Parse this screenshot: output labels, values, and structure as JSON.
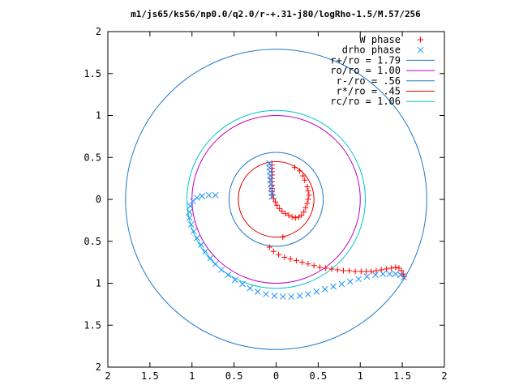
{
  "chart_data": {
    "type": "scatter",
    "title": "m1/js65/ks56/np0.0/q2.0/r-+.31-j80/logRho-1.5/M.57/256",
    "xlabel": "",
    "ylabel": "",
    "xlim": [
      -2,
      2
    ],
    "ylim": [
      -2,
      2
    ],
    "grid": false,
    "legend_position": "top-right",
    "x_ticks": [
      "2",
      "1.5",
      "1",
      "0.5",
      "0",
      "0.5",
      "1",
      "1.5",
      "2"
    ],
    "y_ticks": [
      "2",
      "1.5",
      "1",
      "0.5",
      "0",
      "0.5",
      "1",
      "1.5",
      "2"
    ],
    "series": [
      {
        "name": "W phase",
        "kind": "points",
        "marker": "+",
        "color": "#ff0000",
        "points": [
          [
            -0.05,
            0.41
          ],
          [
            -0.05,
            0.37
          ],
          [
            -0.05,
            0.33
          ],
          [
            -0.05,
            0.29
          ],
          [
            -0.05,
            0.25
          ],
          [
            -0.05,
            0.21
          ],
          [
            -0.05,
            0.17
          ],
          [
            -0.05,
            0.13
          ],
          [
            -0.05,
            0.09
          ],
          [
            -0.04,
            0.05
          ],
          [
            -0.03,
            0.01
          ],
          [
            -0.01,
            -0.03
          ],
          [
            0.01,
            -0.07
          ],
          [
            0.04,
            -0.11
          ],
          [
            0.07,
            -0.14
          ],
          [
            0.11,
            -0.17
          ],
          [
            0.15,
            -0.19
          ],
          [
            0.19,
            -0.21
          ],
          [
            0.23,
            -0.22
          ],
          [
            0.27,
            -0.21
          ],
          [
            0.3,
            -0.19
          ],
          [
            0.33,
            -0.15
          ],
          [
            0.35,
            -0.1
          ],
          [
            0.37,
            -0.05
          ],
          [
            0.38,
            0.0
          ],
          [
            0.39,
            0.05
          ],
          [
            0.38,
            0.1
          ],
          [
            0.37,
            0.15
          ],
          [
            0.34,
            0.23
          ],
          [
            0.32,
            0.28
          ],
          [
            0.28,
            0.34
          ],
          [
            0.22,
            0.38
          ],
          [
            0.08,
            -0.45
          ],
          [
            -0.08,
            -0.57
          ],
          [
            -0.03,
            -0.62
          ],
          [
            0.03,
            -0.66
          ],
          [
            0.1,
            -0.69
          ],
          [
            0.17,
            -0.71
          ],
          [
            0.24,
            -0.73
          ],
          [
            0.31,
            -0.75
          ],
          [
            0.38,
            -0.77
          ],
          [
            0.45,
            -0.79
          ],
          [
            0.52,
            -0.81
          ],
          [
            0.59,
            -0.82
          ],
          [
            0.66,
            -0.83
          ],
          [
            0.73,
            -0.84
          ],
          [
            0.8,
            -0.85
          ],
          [
            0.87,
            -0.85
          ],
          [
            0.94,
            -0.86
          ],
          [
            1.01,
            -0.86
          ],
          [
            1.07,
            -0.86
          ],
          [
            1.13,
            -0.86
          ],
          [
            1.19,
            -0.85
          ],
          [
            1.25,
            -0.84
          ],
          [
            1.31,
            -0.83
          ],
          [
            1.37,
            -0.82
          ],
          [
            1.42,
            -0.81
          ],
          [
            1.46,
            -0.82
          ],
          [
            1.49,
            -0.85
          ],
          [
            1.51,
            -0.89
          ],
          [
            1.52,
            -0.92
          ]
        ]
      },
      {
        "name": "drho phase",
        "kind": "points",
        "marker": "x",
        "color": "#1e90ff",
        "points": [
          [
            -0.08,
            0.43
          ],
          [
            -0.08,
            0.38
          ],
          [
            -0.07,
            0.33
          ],
          [
            -0.07,
            0.28
          ],
          [
            -0.07,
            0.23
          ],
          [
            -0.06,
            0.18
          ],
          [
            -0.06,
            0.13
          ],
          [
            -0.05,
            0.08
          ],
          [
            -0.05,
            0.03
          ],
          [
            -0.72,
            0.05
          ],
          [
            -0.8,
            0.05
          ],
          [
            -0.88,
            0.04
          ],
          [
            -0.94,
            0.02
          ],
          [
            -0.99,
            -0.02
          ],
          [
            -1.02,
            -0.08
          ],
          [
            -1.03,
            -0.15
          ],
          [
            -1.03,
            -0.22
          ],
          [
            -1.01,
            -0.3
          ],
          [
            -0.98,
            -0.38
          ],
          [
            -0.94,
            -0.46
          ],
          [
            -0.89,
            -0.54
          ],
          [
            -0.84,
            -0.62
          ],
          [
            -0.78,
            -0.7
          ],
          [
            -0.72,
            -0.77
          ],
          [
            -0.65,
            -0.84
          ],
          [
            -0.57,
            -0.9
          ],
          [
            -0.49,
            -0.96
          ],
          [
            -0.4,
            -1.01
          ],
          [
            -0.31,
            -1.06
          ],
          [
            -0.22,
            -1.1
          ],
          [
            -0.12,
            -1.13
          ],
          [
            -0.02,
            -1.15
          ],
          [
            0.08,
            -1.16
          ],
          [
            0.18,
            -1.16
          ],
          [
            0.28,
            -1.15
          ],
          [
            0.38,
            -1.13
          ],
          [
            0.48,
            -1.1
          ],
          [
            0.58,
            -1.07
          ],
          [
            0.68,
            -1.04
          ],
          [
            0.78,
            -1.01
          ],
          [
            0.88,
            -0.98
          ],
          [
            0.98,
            -0.95
          ],
          [
            1.08,
            -0.92
          ],
          [
            1.18,
            -0.9
          ],
          [
            1.27,
            -0.89
          ],
          [
            1.35,
            -0.89
          ],
          [
            1.42,
            -0.89
          ],
          [
            1.48,
            -0.9
          ],
          [
            1.52,
            -0.93
          ]
        ]
      },
      {
        "name": "r+/ro = 1.79",
        "kind": "circle",
        "radius": 1.79,
        "color": "#1e78c8"
      },
      {
        "name": "ro/ro = 1.00",
        "kind": "circle",
        "radius": 1.0,
        "color": "#c000c0"
      },
      {
        "name": "r-/ro = .56",
        "kind": "circle",
        "radius": 0.56,
        "color": "#1e78c8"
      },
      {
        "name": "r*/ro = .45",
        "kind": "circle",
        "radius": 0.45,
        "color": "#e00000"
      },
      {
        "name": "rc/ro = 1.06",
        "kind": "circle",
        "radius": 1.06,
        "color": "#00c8c8"
      }
    ]
  }
}
